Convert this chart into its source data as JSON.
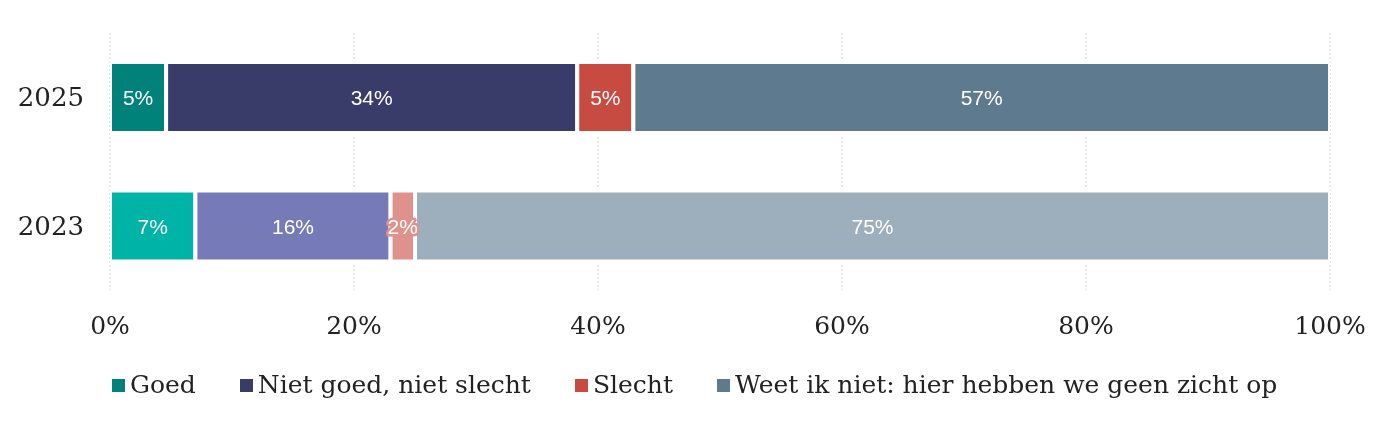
{
  "chart_data": {
    "type": "bar",
    "orientation": "horizontal",
    "stacked": true,
    "categories": [
      "2025",
      "2023"
    ],
    "series": [
      {
        "name": "Goed",
        "color": "#00827a",
        "colors": [
          "#00827a",
          "#00b3a7"
        ],
        "values": [
          4.6,
          7.0
        ],
        "value_labels": [
          "5%",
          "7%"
        ]
      },
      {
        "name": "Niet goed, niet slecht",
        "color": "#393b68",
        "colors": [
          "#393b68",
          "#767ab7"
        ],
        "values": [
          33.7,
          16.0
        ],
        "value_labels": [
          "34%",
          "16%"
        ]
      },
      {
        "name": "Slecht",
        "color": "#c84b42",
        "colors": [
          "#c84b42",
          "#de928b"
        ],
        "values": [
          4.6,
          2.0
        ],
        "value_labels": [
          "5%",
          "2%"
        ]
      },
      {
        "name": "Weet ik niet: hier hebben we geen zicht op",
        "color": "#5e7a8e",
        "colors": [
          "#5e7a8e",
          "#9dafbd"
        ],
        "values": [
          57.1,
          75.0
        ],
        "value_labels": [
          "57%",
          "75%"
        ]
      }
    ],
    "xlim": [
      0,
      100
    ],
    "xticks": [
      {
        "value": 0,
        "label": "0%"
      },
      {
        "value": 20,
        "label": "20%"
      },
      {
        "value": 40,
        "label": "40%"
      },
      {
        "value": 60,
        "label": "60%"
      },
      {
        "value": 80,
        "label": "80%"
      },
      {
        "value": 100,
        "label": "100%"
      }
    ],
    "grid": "x",
    "legend": "bottom"
  }
}
